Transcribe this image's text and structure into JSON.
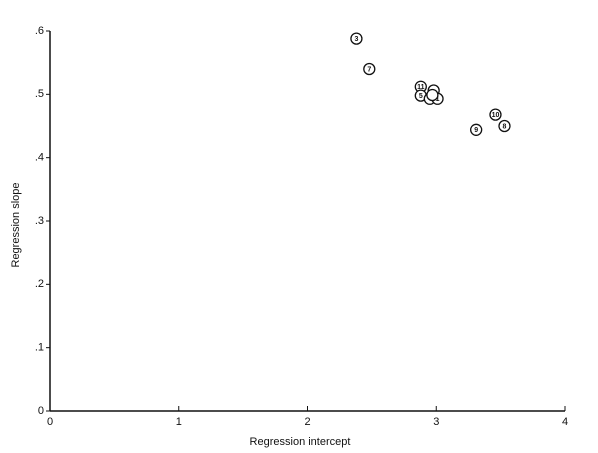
{
  "chart_data": {
    "type": "scatter",
    "xlabel": "Regression intercept",
    "ylabel": "Regression slope",
    "x": [
      2.38,
      2.48,
      2.88,
      2.88,
      2.98,
      2.95,
      3.01,
      2.97,
      3.46,
      3.53,
      3.31
    ],
    "values": [
      0.588,
      0.54,
      0.512,
      0.498,
      0.506,
      0.493,
      0.493,
      0.499,
      0.468,
      0.45,
      0.444
    ],
    "point_labels": [
      "3",
      "7",
      "11",
      "5",
      null,
      null,
      "1",
      null,
      "10",
      "8",
      "9"
    ],
    "color": "#111111",
    "xlim": [
      0,
      4
    ],
    "xticks": [
      0,
      1,
      2,
      3,
      4
    ],
    "ylim": [
      0,
      0.6
    ],
    "yticks": [
      0,
      {
        "value": 0.1,
        "label": ".1"
      },
      {
        "value": 0.2,
        "label": ".2"
      },
      {
        "value": 0.3,
        "label": ".3"
      },
      {
        "value": 0.4,
        "label": ".4"
      },
      {
        "value": 0.5,
        "label": ".5"
      },
      {
        "value": 0.6,
        "label": ".6"
      }
    ],
    "grid": false
  }
}
